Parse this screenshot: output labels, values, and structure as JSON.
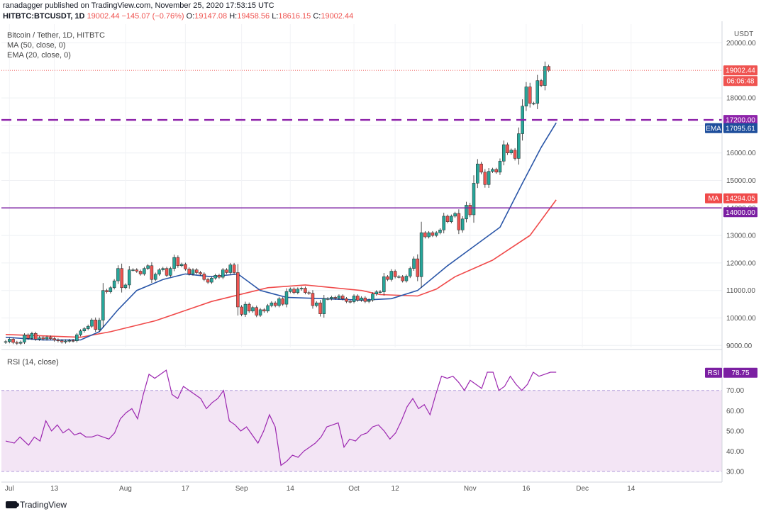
{
  "header": {
    "line1": "ranadagger published on TradingView.com, November 25, 2020 17:53:15 UTC",
    "symbol": "HITBTC:BTCUSDT, 1D",
    "last": "19002.44",
    "change": "−145.07 (−0.76%)",
    "open_label": "O:",
    "open": "19147.08",
    "high_label": "H:",
    "high": "19458.56",
    "low_label": "L:",
    "low": "18616.15",
    "close_label": "C:",
    "close": "19002.44"
  },
  "legend": {
    "title": "Bitcoin / Tether, 1D, HITBTC",
    "ma": "MA (50, close, 0)",
    "ema": "EMA (20, close, 0)",
    "rsi": "RSI (14, close)"
  },
  "footer": {
    "brand": "TradingView"
  },
  "colors": {
    "up": "#26a69a",
    "down": "#ef5350",
    "ma": "#f04a4a",
    "ema": "#2a56a8",
    "rsi": "#9c27b0",
    "level": "#7b1fa2",
    "dashed": "#8e24aa",
    "band": "#f3e5f5",
    "ema_tag": "#1e4e9c"
  },
  "chart_data": [
    {
      "type": "candlestick",
      "title": "Bitcoin / Tether, 1D, HITBTC",
      "currency": "USDT",
      "ylim": [
        8400,
        20000
      ],
      "y_ticks": [
        9000,
        10000,
        11000,
        12000,
        13000,
        14000,
        15000,
        16000,
        17000,
        18000,
        20000
      ],
      "x_tick_labels": [
        "Jul",
        "13",
        "Aug",
        "17",
        "Sep",
        "14",
        "Oct",
        "12",
        "Nov",
        "16",
        "Dec",
        "14"
      ],
      "x_tick_dates": [
        "2020-07-01",
        "2020-07-13",
        "2020-08-01",
        "2020-08-17",
        "2020-09-01",
        "2020-09-14",
        "2020-10-01",
        "2020-10-12",
        "2020-11-01",
        "2020-11-16",
        "2020-12-01",
        "2020-12-14"
      ],
      "x_range": [
        "2020-06-30",
        "2020-12-16"
      ],
      "first_date": "2020-06-30",
      "close": [
        9140,
        9230,
        9110,
        9080,
        9120,
        9380,
        9260,
        9440,
        9230,
        9280,
        9240,
        9300,
        9250,
        9200,
        9170,
        9130,
        9160,
        9180,
        9170,
        9390,
        9530,
        9610,
        9700,
        9930,
        9580,
        9920,
        11000,
        10950,
        11100,
        11350,
        11800,
        11100,
        11200,
        11750,
        11750,
        11700,
        11600,
        11800,
        11900,
        11400,
        11590,
        11750,
        11800,
        11550,
        11800,
        12200,
        11900,
        11950,
        11780,
        11600,
        11750,
        11650,
        11600,
        11400,
        11300,
        11450,
        11550,
        11480,
        11750,
        11650,
        11930,
        11650,
        10400,
        10130,
        10500,
        10250,
        10380,
        10100,
        10300,
        10250,
        10450,
        10550,
        10450,
        10700,
        10500,
        10960,
        11050,
        10920,
        11050,
        11080,
        10920,
        10900,
        10450,
        10550,
        10150,
        10700,
        10700,
        10750,
        10720,
        10800,
        10700,
        10600,
        10590,
        10800,
        10650,
        10730,
        10600,
        10650,
        10870,
        10950,
        10950,
        11500,
        11400,
        11700,
        11500,
        11500,
        11350,
        11520,
        11800,
        12150,
        11500,
        13100,
        12950,
        13100,
        13000,
        13100,
        13200,
        13700,
        13500,
        13700,
        13800,
        13200,
        13600,
        14100,
        13750,
        14900,
        15600,
        15300,
        14850,
        15330,
        15400,
        15300,
        15700,
        16300,
        16000,
        16100,
        15800,
        16700,
        17700,
        18400,
        17800,
        17800,
        18630,
        18450,
        19147,
        19002
      ],
      "series": [
        {
          "name": "MA (50, close, 0)",
          "last_value": "14294.05",
          "points": [
            [
              0,
              9400
            ],
            [
              20,
              9300
            ],
            [
              28,
              9500
            ],
            [
              40,
              9900
            ],
            [
              55,
              10600
            ],
            [
              70,
              11100
            ],
            [
              80,
              11200
            ],
            [
              95,
              11000
            ],
            [
              100,
              10850
            ],
            [
              110,
              10800
            ],
            [
              115,
              11050
            ],
            [
              120,
              11500
            ],
            [
              130,
              12100
            ],
            [
              140,
              13000
            ],
            [
              147,
              14294
            ]
          ]
        },
        {
          "name": "EMA (20, close, 0)",
          "last_value": "17095.61",
          "points": [
            [
              0,
              9300
            ],
            [
              10,
              9200
            ],
            [
              20,
              9200
            ],
            [
              25,
              9500
            ],
            [
              30,
              10300
            ],
            [
              35,
              11000
            ],
            [
              42,
              11400
            ],
            [
              48,
              11600
            ],
            [
              55,
              11500
            ],
            [
              62,
              11600
            ],
            [
              68,
              11000
            ],
            [
              75,
              10750
            ],
            [
              85,
              10700
            ],
            [
              95,
              10650
            ],
            [
              103,
              10700
            ],
            [
              110,
              11000
            ],
            [
              118,
              11900
            ],
            [
              125,
              12600
            ],
            [
              132,
              13300
            ],
            [
              138,
              14900
            ],
            [
              143,
              16200
            ],
            [
              147,
              17096
            ]
          ]
        },
        {
          "name": "RSI (14, close)",
          "last_value": "78.75",
          "points": [
            [
              0,
              45
            ],
            [
              3,
              44
            ],
            [
              5,
              47
            ],
            [
              8,
              43
            ],
            [
              10,
              47
            ],
            [
              12,
              45
            ],
            [
              14,
              55
            ],
            [
              16,
              50
            ],
            [
              18,
              53
            ],
            [
              20,
              49
            ],
            [
              22,
              51
            ],
            [
              24,
              48
            ],
            [
              26,
              49
            ],
            [
              28,
              47
            ],
            [
              30,
              47
            ],
            [
              32,
              48
            ],
            [
              34,
              47
            ],
            [
              36,
              46
            ],
            [
              38,
              49
            ],
            [
              40,
              56
            ],
            [
              42,
              59
            ],
            [
              44,
              61
            ],
            [
              46,
              56
            ],
            [
              48,
              68
            ],
            [
              50,
              78
            ],
            [
              52,
              76
            ],
            [
              54,
              78
            ],
            [
              56,
              80
            ],
            [
              58,
              68
            ],
            [
              60,
              66
            ],
            [
              62,
              72
            ],
            [
              64,
              70
            ],
            [
              66,
              68
            ],
            [
              68,
              66
            ],
            [
              70,
              61
            ],
            [
              72,
              64
            ],
            [
              74,
              66
            ],
            [
              76,
              70
            ],
            [
              78,
              55
            ],
            [
              80,
              53
            ],
            [
              82,
              50
            ],
            [
              84,
              52
            ],
            [
              86,
              48
            ],
            [
              88,
              44
            ],
            [
              90,
              50
            ],
            [
              92,
              58
            ],
            [
              94,
              52
            ],
            [
              96,
              33
            ],
            [
              98,
              35
            ],
            [
              100,
              38
            ],
            [
              102,
              37
            ],
            [
              104,
              40
            ],
            [
              106,
              42
            ],
            [
              108,
              44
            ],
            [
              110,
              47
            ],
            [
              112,
              52
            ],
            [
              114,
              53
            ],
            [
              116,
              54
            ],
            [
              118,
              42
            ],
            [
              120,
              46
            ],
            [
              122,
              45
            ],
            [
              124,
              48
            ],
            [
              126,
              49
            ],
            [
              128,
              52
            ],
            [
              130,
              53
            ],
            [
              132,
              50
            ],
            [
              134,
              46
            ],
            [
              136,
              49
            ],
            [
              138,
              55
            ],
            [
              140,
              62
            ],
            [
              142,
              66
            ],
            [
              144,
              61
            ],
            [
              146,
              63
            ],
            [
              148,
              58
            ],
            [
              150,
              68
            ],
            [
              152,
              77
            ],
            [
              154,
              76
            ],
            [
              156,
              77
            ],
            [
              158,
              74
            ],
            [
              160,
              70
            ],
            [
              162,
              75
            ],
            [
              164,
              73
            ],
            [
              166,
              71
            ],
            [
              168,
              79
            ],
            [
              170,
              79
            ],
            [
              172,
              70
            ],
            [
              174,
              72
            ],
            [
              176,
              77
            ],
            [
              178,
              73
            ],
            [
              180,
              70
            ],
            [
              182,
              73
            ],
            [
              184,
              79
            ],
            [
              186,
              77
            ],
            [
              188,
              78
            ],
            [
              190,
              79
            ],
            [
              192,
              79
            ]
          ]
        }
      ],
      "levels": [
        {
          "value": 17200,
          "label": "17200.00",
          "style": "dashed"
        },
        {
          "value": 14000,
          "label": "14000.00",
          "style": "solid"
        }
      ],
      "last_price": "19002.44",
      "countdown": "06:06:48",
      "ema_tag": "EMA",
      "ma_tag": "MA"
    },
    {
      "type": "line",
      "title": "RSI (14, close)",
      "ylim": [
        25,
        85
      ],
      "y_ticks": [
        30,
        40,
        50,
        60,
        70
      ],
      "band": [
        30,
        70
      ],
      "tag": "RSI",
      "last_value": "78.75"
    }
  ]
}
